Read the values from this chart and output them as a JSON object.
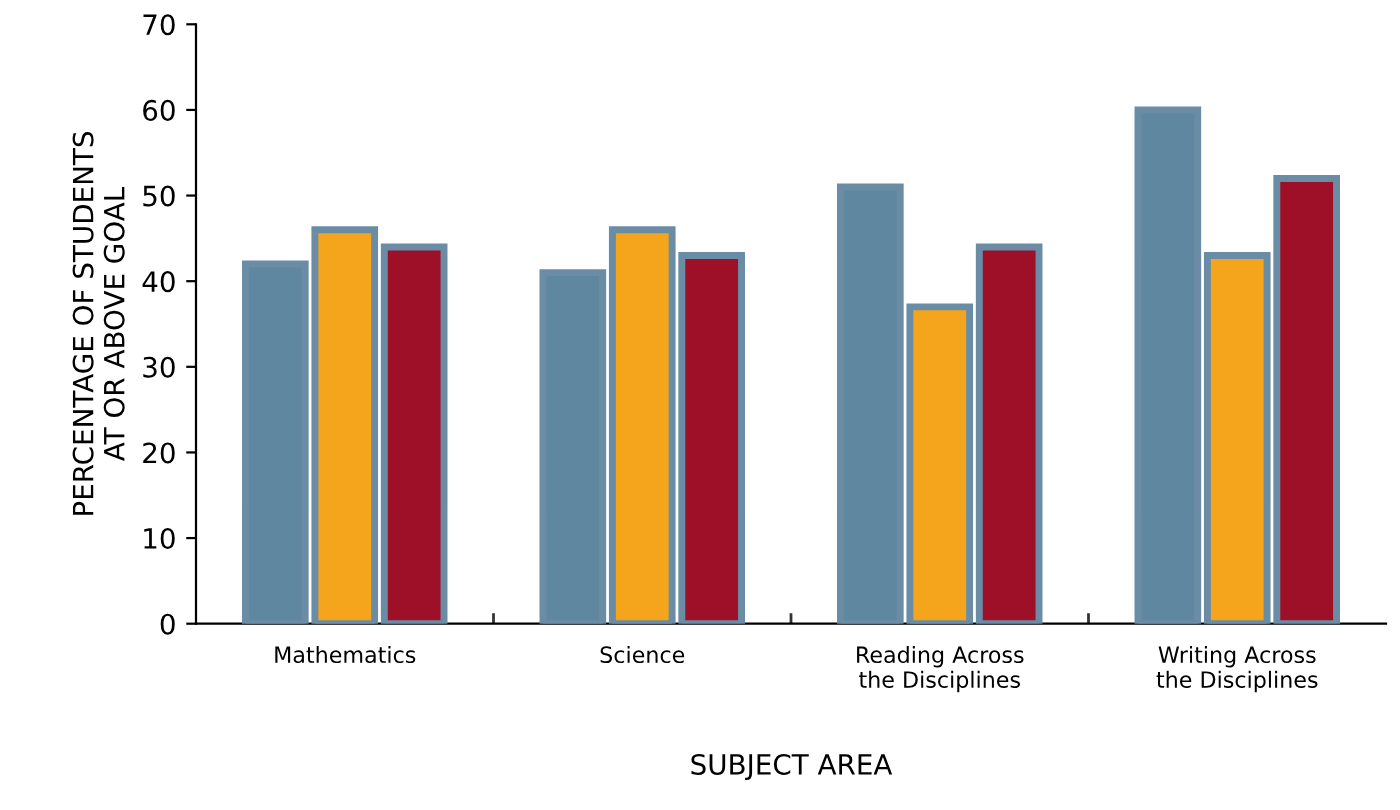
{
  "chart_data": {
    "type": "bar",
    "xlabel": "SUBJECT AREA",
    "ylabel": "PERCENTAGE OF STUDENTS\nAT OR ABOVE GOAL",
    "categories": [
      "Mathematics",
      "Science",
      "Reading Across\nthe Disciplines",
      "Writing Across\nthe Disciplines"
    ],
    "series": [
      {
        "color": "#5f87a0",
        "values": [
          42,
          41,
          51,
          60
        ]
      },
      {
        "color": "#f5a51c",
        "values": [
          46,
          46,
          37,
          43
        ]
      },
      {
        "color": "#9e1028",
        "values": [
          44,
          43,
          44,
          52
        ]
      }
    ],
    "ylim": [
      0,
      70
    ],
    "yticks": [
      0,
      10,
      20,
      30,
      40,
      50,
      60,
      70
    ],
    "grid": false,
    "legend": false
  }
}
